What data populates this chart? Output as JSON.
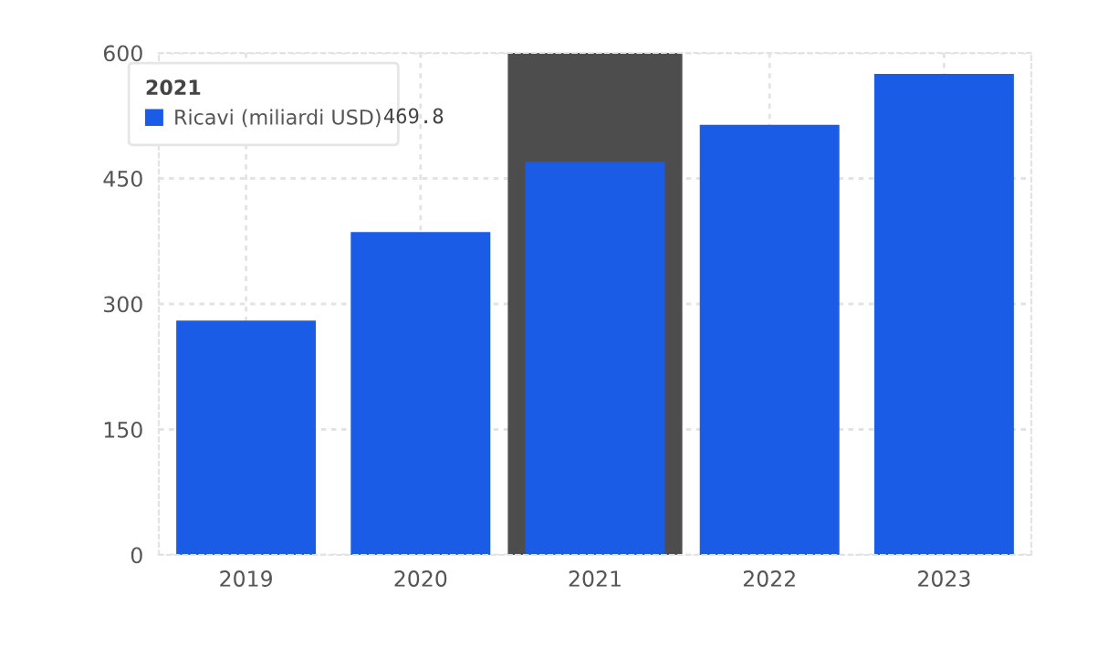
{
  "chart_data": {
    "type": "bar",
    "categories": [
      "2019",
      "2020",
      "2021",
      "2022",
      "2023"
    ],
    "series": [
      {
        "name": "Ricavi (miliardi USD)",
        "color": "#1a5ce5",
        "values": [
          280,
          386,
          469.8,
          514,
          575
        ]
      }
    ],
    "ylim": [
      0,
      600
    ],
    "yticks": [
      0,
      150,
      300,
      450,
      600
    ],
    "grid": true,
    "legend": "top left",
    "legend_title": "2021",
    "annotations": [
      "469.8"
    ],
    "bands": [
      {
        "axis": "x",
        "from": "2021",
        "to": "2021",
        "color": "#4d4d4d"
      }
    ]
  }
}
